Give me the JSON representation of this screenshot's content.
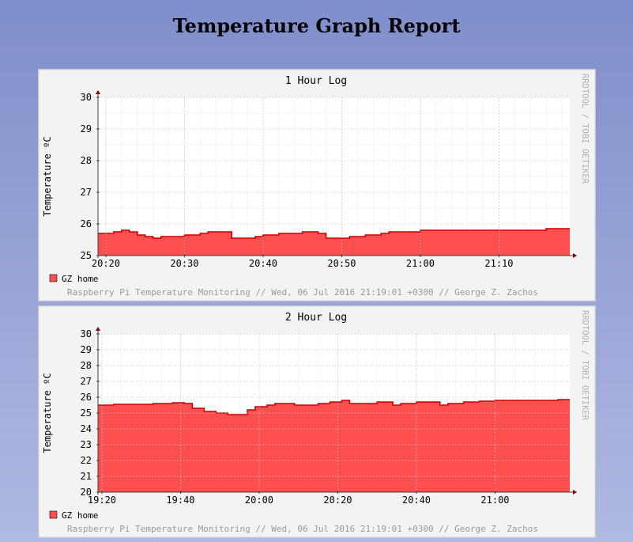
{
  "page": {
    "title": "Temperature Graph Report"
  },
  "watermark": "RRDTOOL / TOBI OETIKER",
  "colors": {
    "area": "#ff4f4f",
    "line": "#cc0000",
    "legend_box": "#ff4f4f"
  },
  "chart_data": [
    {
      "type": "area",
      "title": "1 Hour Log",
      "ylabel": "Temperature ºC",
      "xlabel": "",
      "ylim": [
        25,
        30
      ],
      "yticks": [
        25,
        26,
        27,
        28,
        29,
        30
      ],
      "xlim": [
        "20:19",
        "21:19"
      ],
      "xticks": [
        "20:20",
        "20:30",
        "20:40",
        "20:50",
        "21:00",
        "21:10"
      ],
      "grid": true,
      "legend": {
        "position": "bottom-left",
        "entries": [
          "GZ home"
        ]
      },
      "footer": "Raspberry Pi Temperature Monitoring // Wed, 06 Jul 2016 21:19:01 +0300 // George Z. Zachos",
      "series": [
        {
          "name": "GZ home",
          "x": [
            "20:19",
            "20:21",
            "20:22",
            "20:23",
            "20:24",
            "20:25",
            "20:26",
            "20:27",
            "20:28",
            "20:29",
            "20:30",
            "20:31",
            "20:32",
            "20:33",
            "20:34",
            "20:35",
            "20:36",
            "20:37",
            "20:38",
            "20:39",
            "20:40",
            "20:41",
            "20:42",
            "20:43",
            "20:44",
            "20:45",
            "20:46",
            "20:47",
            "20:48",
            "20:49",
            "20:50",
            "20:51",
            "20:52",
            "20:53",
            "20:54",
            "20:55",
            "20:56",
            "20:57",
            "20:58",
            "20:59",
            "21:00",
            "21:02",
            "21:04",
            "21:06",
            "21:08",
            "21:10",
            "21:12",
            "21:14",
            "21:16",
            "21:17",
            "21:19"
          ],
          "values": [
            25.7,
            25.75,
            25.8,
            25.75,
            25.65,
            25.6,
            25.55,
            25.6,
            25.6,
            25.6,
            25.65,
            25.65,
            25.7,
            25.75,
            25.75,
            25.75,
            25.55,
            25.55,
            25.55,
            25.6,
            25.65,
            25.65,
            25.7,
            25.7,
            25.7,
            25.75,
            25.75,
            25.7,
            25.55,
            25.55,
            25.55,
            25.6,
            25.6,
            25.65,
            25.65,
            25.7,
            25.75,
            25.75,
            25.75,
            25.75,
            25.8,
            25.8,
            25.8,
            25.8,
            25.8,
            25.8,
            25.8,
            25.8,
            25.85,
            25.85,
            25.85
          ]
        }
      ]
    },
    {
      "type": "area",
      "title": "2 Hour Log",
      "ylabel": "Temperature ºC",
      "xlabel": "",
      "ylim": [
        20,
        30
      ],
      "yticks": [
        20,
        21,
        22,
        23,
        24,
        25,
        26,
        27,
        28,
        29,
        30
      ],
      "xlim": [
        "19:19",
        "21:19"
      ],
      "xticks": [
        "19:20",
        "19:40",
        "20:00",
        "20:20",
        "20:40",
        "21:00"
      ],
      "grid": true,
      "legend": {
        "position": "bottom-left",
        "entries": [
          "GZ home"
        ]
      },
      "footer": "Raspberry Pi Temperature Monitoring // Wed, 06 Jul 2016 21:19:01 +0300 // George Z. Zachos",
      "series": [
        {
          "name": "GZ home",
          "x": [
            "19:19",
            "19:23",
            "19:28",
            "19:33",
            "19:38",
            "19:41",
            "19:43",
            "19:46",
            "19:49",
            "19:52",
            "19:55",
            "19:57",
            "19:59",
            "20:02",
            "20:04",
            "20:06",
            "20:09",
            "20:12",
            "20:15",
            "20:18",
            "20:21",
            "20:23",
            "20:26",
            "20:30",
            "20:32",
            "20:34",
            "20:36",
            "20:40",
            "20:44",
            "20:46",
            "20:48",
            "20:52",
            "20:56",
            "21:00",
            "21:04",
            "21:08",
            "21:12",
            "21:16",
            "21:19"
          ],
          "values": [
            25.5,
            25.55,
            25.55,
            25.6,
            25.65,
            25.6,
            25.3,
            25.1,
            25.0,
            24.9,
            24.9,
            25.2,
            25.4,
            25.5,
            25.6,
            25.6,
            25.5,
            25.5,
            25.6,
            25.7,
            25.8,
            25.6,
            25.6,
            25.7,
            25.7,
            25.5,
            25.6,
            25.7,
            25.7,
            25.5,
            25.6,
            25.7,
            25.75,
            25.8,
            25.8,
            25.8,
            25.8,
            25.85,
            25.85
          ]
        }
      ]
    }
  ]
}
